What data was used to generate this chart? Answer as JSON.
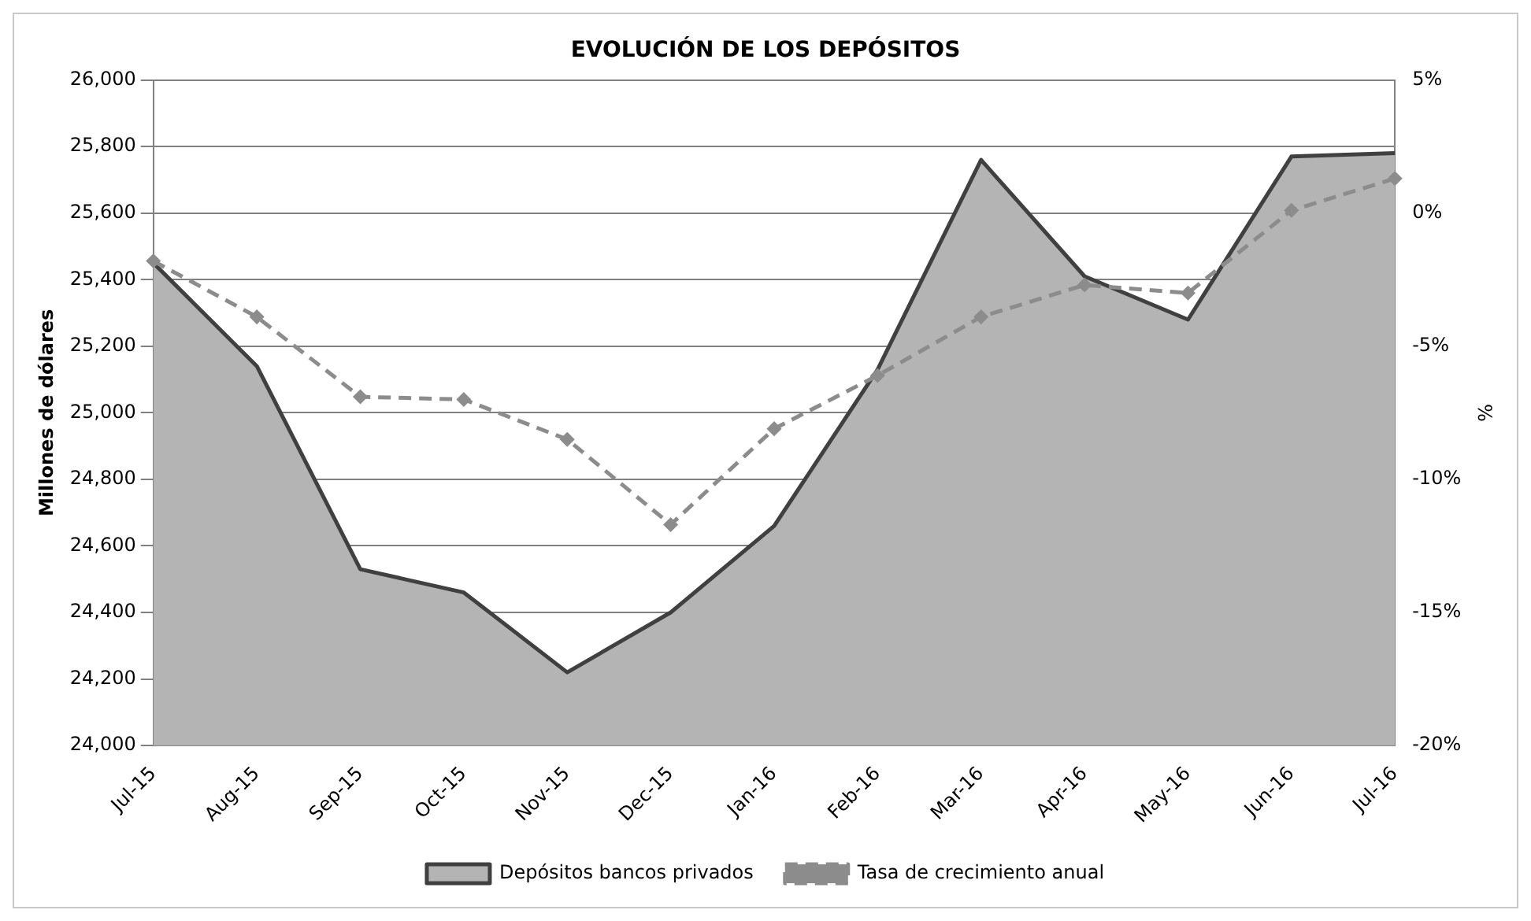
{
  "chart_data": {
    "type": "area",
    "title": "EVOLUCIÓN DE LOS DEPÓSITOS",
    "ylabel": "Millones de dólares",
    "y2label": "%",
    "categories": [
      "Jul-15",
      "Aug-15",
      "Sep-15",
      "Oct-15",
      "Nov-15",
      "Dec-15",
      "Jan-16",
      "Feb-16",
      "Mar-16",
      "Apr-16",
      "May-16",
      "Jun-16",
      "Jul-16"
    ],
    "series": [
      {
        "name": "Depósitos bancos privados",
        "color": "#b4b4b4",
        "values": [
          25450,
          25140,
          24530,
          24460,
          24220,
          24400,
          24660,
          25130,
          25760,
          25410,
          25280,
          25770,
          25780
        ]
      },
      {
        "name": "Tasa de crecimiento anual",
        "type": "line",
        "axis": "y2",
        "color": "#8c8c8c",
        "line_style": "dashed",
        "marker": "diamond",
        "values": [
          -1.8,
          -3.9,
          -6.9,
          -7.0,
          -8.5,
          -11.7,
          -8.1,
          -6.1,
          -3.9,
          -2.7,
          -3.0,
          0.1,
          1.3
        ]
      }
    ],
    "ylim": [
      24000,
      26000
    ],
    "yticks": [
      {
        "value": 24000,
        "label": "24,000"
      },
      {
        "value": 24200,
        "label": "24,200"
      },
      {
        "value": 24400,
        "label": "24,400"
      },
      {
        "value": 24600,
        "label": "24,600"
      },
      {
        "value": 24800,
        "label": "24,800"
      },
      {
        "value": 25000,
        "label": "25,000"
      },
      {
        "value": 25200,
        "label": "25,200"
      },
      {
        "value": 25400,
        "label": "25,400"
      },
      {
        "value": 25600,
        "label": "25,600"
      },
      {
        "value": 25800,
        "label": "25,800"
      },
      {
        "value": 26000,
        "label": "26,000"
      }
    ],
    "y2lim": [
      -20,
      5
    ],
    "y2ticks": [
      {
        "value": -20,
        "label": "-20%"
      },
      {
        "value": -15,
        "label": "-15%"
      },
      {
        "value": -10,
        "label": "-10%"
      },
      {
        "value": -5,
        "label": "-5%"
      },
      {
        "value": 0,
        "label": "0%"
      },
      {
        "value": 5,
        "label": "5%"
      }
    ],
    "grid": "y",
    "legend": "bottom"
  }
}
